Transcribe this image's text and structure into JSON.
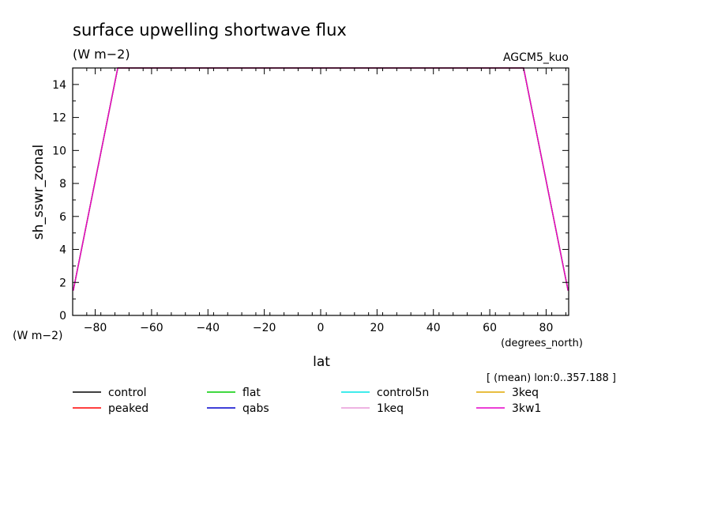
{
  "chart_data": {
    "type": "line",
    "title": "surface upwelling shortwave flux",
    "subtitle": "(W m−2)",
    "model_label": "AGCM5_kuo",
    "ylabel": "sh_sswr_zonal",
    "y_unit_label": "(W m−2)",
    "xlabel": "lat",
    "x_unit_label": "(degrees_north)",
    "annotation": "[ (mean) lon:0..357.188 ]",
    "xlim": [
      -88,
      88
    ],
    "ylim": [
      0,
      15
    ],
    "x_ticks": [
      -80,
      -60,
      -40,
      -20,
      0,
      20,
      40,
      60,
      80
    ],
    "y_ticks": [
      0,
      2,
      4,
      6,
      8,
      10,
      12,
      14
    ],
    "grid": false,
    "legend_position": "bottom",
    "series": [
      {
        "name": "control",
        "color": "#000000",
        "x": [
          -87.8,
          -72.0,
          72.0,
          87.8
        ],
        "y": [
          1.5,
          15.0,
          15.0,
          1.5
        ]
      },
      {
        "name": "peaked",
        "color": "#ff0000",
        "x": [
          -87.8,
          -72.0,
          72.0,
          87.8
        ],
        "y": [
          1.5,
          15.0,
          15.0,
          1.5
        ]
      },
      {
        "name": "flat",
        "color": "#00cc00",
        "x": [
          -87.8,
          -72.0,
          72.0,
          87.8
        ],
        "y": [
          1.5,
          15.0,
          15.0,
          1.5
        ]
      },
      {
        "name": "qabs",
        "color": "#0000cc",
        "x": [
          -87.8,
          -72.0,
          72.0,
          87.8
        ],
        "y": [
          1.5,
          15.0,
          15.0,
          1.5
        ]
      },
      {
        "name": "control5n",
        "color": "#00e5e5",
        "x": [
          -87.8,
          -72.0,
          72.0,
          87.8
        ],
        "y": [
          1.5,
          15.0,
          15.0,
          1.5
        ]
      },
      {
        "name": "1keq",
        "color": "#e89ad8",
        "x": [
          -87.8,
          -72.0,
          72.0,
          87.8
        ],
        "y": [
          1.5,
          15.0,
          15.0,
          1.5
        ]
      },
      {
        "name": "3keq",
        "color": "#e0a800",
        "x": [
          -87.8,
          -72.0,
          72.0,
          87.8
        ],
        "y": [
          1.5,
          15.0,
          15.0,
          1.5
        ]
      },
      {
        "name": "3kw1",
        "color": "#e600c8",
        "x": [
          -87.8,
          -72.0,
          72.0,
          87.8
        ],
        "y": [
          1.5,
          15.0,
          15.0,
          1.5
        ]
      }
    ]
  }
}
